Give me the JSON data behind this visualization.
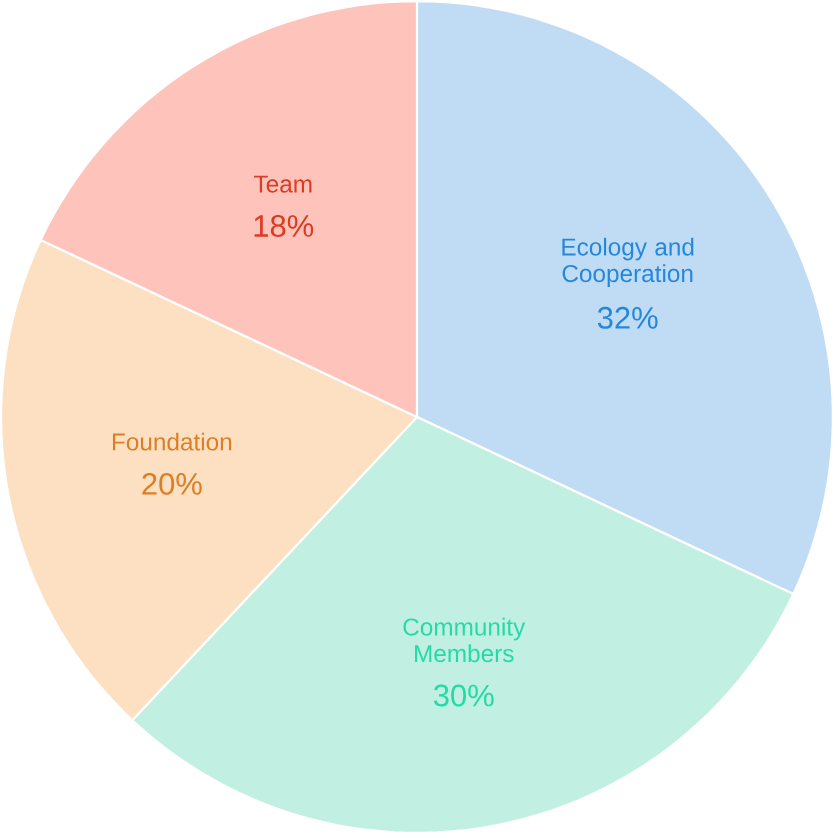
{
  "chart_data": {
    "type": "pie",
    "categories": [
      "Ecology and Cooperation",
      "Community Members",
      "Foundation",
      "Team"
    ],
    "values": [
      32,
      30,
      20,
      18
    ],
    "value_labels": [
      "32%",
      "30%",
      "20%",
      "18%"
    ],
    "colors": [
      "#c0dcf4",
      "#c1efe2",
      "#fddfc2",
      "#fec3ba"
    ]
  }
}
